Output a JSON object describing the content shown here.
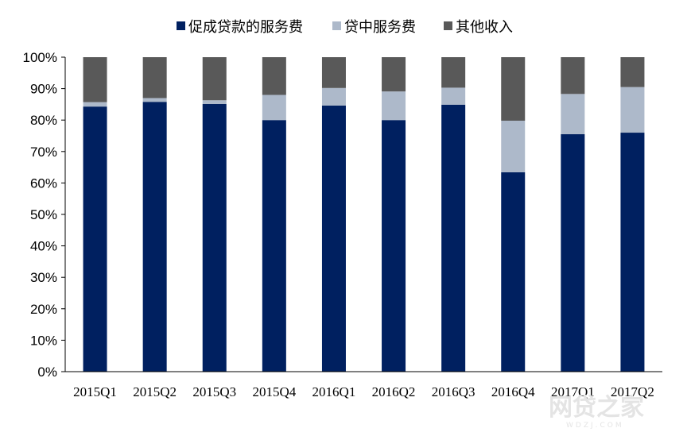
{
  "chart_data": {
    "type": "bar",
    "stacked": true,
    "categories": [
      "2015Q1",
      "2015Q2",
      "2015Q3",
      "2015Q4",
      "2016Q1",
      "2016Q2",
      "2016Q3",
      "2016Q4",
      "2017Q1",
      "2017Q2"
    ],
    "series": [
      {
        "name": "促成贷款的服务费",
        "color": "#002060",
        "values": [
          84.3,
          85.8,
          85.1,
          80.0,
          84.6,
          80.0,
          84.9,
          63.4,
          75.5,
          76.0
        ]
      },
      {
        "name": "贷中服务费",
        "color": "#adb9ca",
        "values": [
          1.4,
          1.2,
          1.2,
          8.0,
          5.6,
          9.1,
          5.4,
          16.4,
          12.8,
          14.5
        ]
      },
      {
        "name": "其他收入",
        "color": "#595959",
        "values": [
          14.3,
          13.0,
          13.7,
          12.0,
          9.8,
          10.9,
          9.7,
          20.2,
          11.7,
          9.5
        ]
      }
    ],
    "ylim": [
      0,
      100
    ],
    "yticks": [
      "0%",
      "10%",
      "20%",
      "30%",
      "40%",
      "50%",
      "60%",
      "70%",
      "80%",
      "90%",
      "100%"
    ],
    "grid": false,
    "legend_position": "top"
  },
  "watermark": {
    "text": "网贷之家",
    "sub": "WDZJ.COM"
  }
}
